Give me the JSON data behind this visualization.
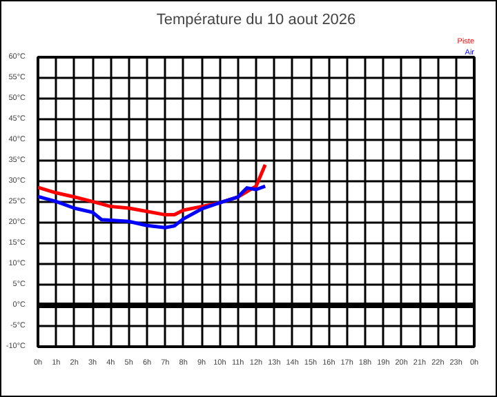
{
  "chart_data": {
    "type": "line",
    "title": "Température du 10 aout 2026",
    "xlim": [
      "2026-08-10T00:00",
      "2026-08-11T00:00"
    ],
    "xticks": [
      {
        "value": "2026-08-10T00:00",
        "label": "0h"
      },
      {
        "value": "2026-08-10T01:00",
        "label": "1h"
      },
      {
        "value": "2026-08-10T02:00",
        "label": "2h"
      },
      {
        "value": "2026-08-10T03:00",
        "label": "3h"
      },
      {
        "value": "2026-08-10T04:00",
        "label": "4h"
      },
      {
        "value": "2026-08-10T05:00",
        "label": "5h"
      },
      {
        "value": "2026-08-10T06:00",
        "label": "6h"
      },
      {
        "value": "2026-08-10T07:00",
        "label": "7h"
      },
      {
        "value": "2026-08-10T08:00",
        "label": "8h"
      },
      {
        "value": "2026-08-10T09:00",
        "label": "9h"
      },
      {
        "value": "2026-08-10T10:00",
        "label": "10h"
      },
      {
        "value": "2026-08-10T11:00",
        "label": "11h"
      },
      {
        "value": "2026-08-10T12:00",
        "label": "12h"
      },
      {
        "value": "2026-08-10T13:00",
        "label": "13h"
      },
      {
        "value": "2026-08-10T14:00",
        "label": "14h"
      },
      {
        "value": "2026-08-10T15:00",
        "label": "15h"
      },
      {
        "value": "2026-08-10T16:00",
        "label": "16h"
      },
      {
        "value": "2026-08-10T17:00",
        "label": "17h"
      },
      {
        "value": "2026-08-10T18:00",
        "label": "18h"
      },
      {
        "value": "2026-08-10T19:00",
        "label": "19h"
      },
      {
        "value": "2026-08-10T20:00",
        "label": "20h"
      },
      {
        "value": "2026-08-10T21:00",
        "label": "21h"
      },
      {
        "value": "2026-08-10T22:00",
        "label": "22h"
      },
      {
        "value": "2026-08-10T23:00",
        "label": "23h"
      },
      {
        "value": "2026-08-11T00:00",
        "label": "0h"
      }
    ],
    "ylim": [
      -10,
      60
    ],
    "yticks": [
      {
        "value": -10,
        "label": "-10°C"
      },
      {
        "value": -5,
        "label": "-5°C"
      },
      {
        "value": 0,
        "label": "0°C"
      },
      {
        "value": 5,
        "label": "5°C"
      },
      {
        "value": 10,
        "label": "10°C"
      },
      {
        "value": 15,
        "label": "15°C"
      },
      {
        "value": 20,
        "label": "20°C"
      },
      {
        "value": 25,
        "label": "25°C"
      },
      {
        "value": 30,
        "label": "30°C"
      },
      {
        "value": 35,
        "label": "35°C"
      },
      {
        "value": 40,
        "label": "40°C"
      },
      {
        "value": 45,
        "label": "45°C"
      },
      {
        "value": 50,
        "label": "50°C"
      },
      {
        "value": 55,
        "label": "55°C"
      },
      {
        "value": 60,
        "label": "60°C"
      }
    ],
    "grid": true,
    "marker": "none",
    "line_style": "solid",
    "ref_lines": [
      {
        "axis": "y",
        "value": 0,
        "label": null,
        "color": "#000000"
      }
    ],
    "series": [
      {
        "name": "Piste",
        "color": "#ff0000",
        "x": [
          "2026-08-10T00:00",
          "2026-08-10T01:00",
          "2026-08-10T02:00",
          "2026-08-10T03:00",
          "2026-08-10T04:00",
          "2026-08-10T05:00",
          "2026-08-10T06:00",
          "2026-08-10T07:00",
          "2026-08-10T07:30",
          "2026-08-10T08:00",
          "2026-08-10T09:00",
          "2026-08-10T10:00",
          "2026-08-10T11:00",
          "2026-08-10T12:00",
          "2026-08-10T12:30"
        ],
        "values": [
          28.5,
          27.2,
          26.2,
          25.1,
          23.9,
          23.5,
          22.7,
          21.9,
          21.9,
          23.0,
          23.9,
          24.8,
          26.2,
          28.8,
          34.0
        ]
      },
      {
        "name": "Air",
        "color": "#0000ff",
        "x": [
          "2026-08-10T00:00",
          "2026-08-10T01:00",
          "2026-08-10T02:00",
          "2026-08-10T03:00",
          "2026-08-10T03:30",
          "2026-08-10T04:00",
          "2026-08-10T05:00",
          "2026-08-10T06:00",
          "2026-08-10T07:00",
          "2026-08-10T07:30",
          "2026-08-10T08:00",
          "2026-08-10T09:00",
          "2026-08-10T10:00",
          "2026-08-10T11:00",
          "2026-08-10T11:30",
          "2026-08-10T12:00",
          "2026-08-10T12:30"
        ],
        "values": [
          26.3,
          25.1,
          23.5,
          22.5,
          20.7,
          20.6,
          20.3,
          19.3,
          18.8,
          19.2,
          20.9,
          23.3,
          24.8,
          26.2,
          28.4,
          28.0,
          28.8
        ]
      }
    ]
  }
}
